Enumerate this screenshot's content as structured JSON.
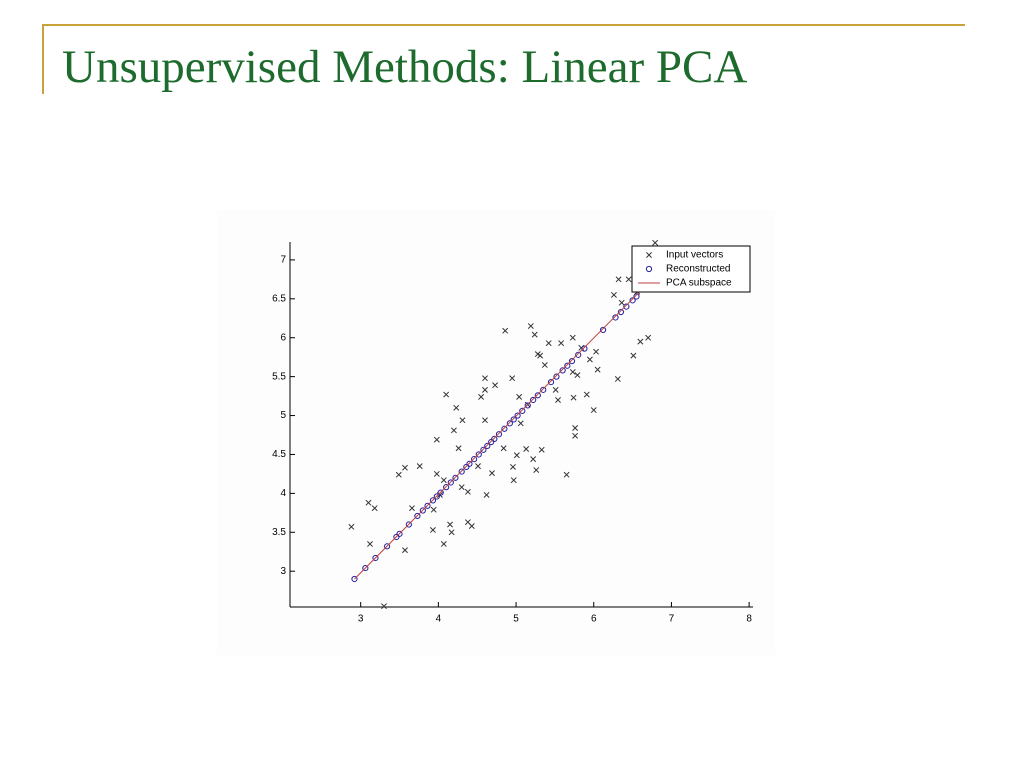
{
  "slide": {
    "title": "Unsupervised Methods: Linear PCA"
  },
  "chart_data": {
    "type": "scatter",
    "xlim": [
      2.09,
      8.05
    ],
    "ylim": [
      2.54,
      7.23
    ],
    "xticks": [
      3,
      4,
      5,
      6,
      7,
      8
    ],
    "yticks": [
      3,
      3.5,
      4,
      4.5,
      5,
      5.5,
      6,
      6.5,
      7
    ],
    "legend": "upper right",
    "series": [
      {
        "name": "Input vectors",
        "marker": "x",
        "color": "#333333",
        "x": [
          2.88,
          3.1,
          3.18,
          3.12,
          3.3,
          3.57,
          3.49,
          3.57,
          3.66,
          3.76,
          3.93,
          3.94,
          3.98,
          3.98,
          4.02,
          4.07,
          4.07,
          4.1,
          4.15,
          4.17,
          4.2,
          4.23,
          4.26,
          4.3,
          4.31,
          4.38,
          4.38,
          4.43,
          4.51,
          4.55,
          4.6,
          4.6,
          4.62,
          4.69,
          4.73,
          4.6,
          4.86,
          4.84,
          4.95,
          4.97,
          4.96,
          5.01,
          5.04,
          5.06,
          5.13,
          5.15,
          5.19,
          5.22,
          5.24,
          5.26,
          5.28,
          5.31,
          5.33,
          5.37,
          5.42,
          5.51,
          5.54,
          5.58,
          5.65,
          5.73,
          5.73,
          5.74,
          5.76,
          5.76,
          5.79,
          5.84,
          5.91,
          5.95,
          6.03,
          6.0,
          6.05,
          6.26,
          6.31,
          6.32,
          6.36,
          6.45,
          6.51,
          6.6,
          6.7,
          6.79,
          6.56
        ],
        "values": [
          3.57,
          3.88,
          3.81,
          3.35,
          2.55,
          3.27,
          4.24,
          4.33,
          3.81,
          4.35,
          3.53,
          3.79,
          4.69,
          4.25,
          3.98,
          4.17,
          3.35,
          5.27,
          3.6,
          3.5,
          4.81,
          5.1,
          4.58,
          4.08,
          4.94,
          4.02,
          3.63,
          3.58,
          4.35,
          5.24,
          5.48,
          5.33,
          3.98,
          4.26,
          5.39,
          4.94,
          6.09,
          4.58,
          5.48,
          4.17,
          4.34,
          4.49,
          5.24,
          4.9,
          4.57,
          5.14,
          6.15,
          4.44,
          6.04,
          4.3,
          5.79,
          5.77,
          4.56,
          5.65,
          5.93,
          5.33,
          5.2,
          5.93,
          4.24,
          6.0,
          5.56,
          5.23,
          4.84,
          4.74,
          5.52,
          5.87,
          5.27,
          5.72,
          5.82,
          5.07,
          5.59,
          6.55,
          5.47,
          6.75,
          6.45,
          6.75,
          5.77,
          5.95,
          6.0,
          7.22,
          6.59
        ]
      },
      {
        "name": "Reconstructed",
        "marker": "o",
        "color": "#2020a0",
        "x": [
          2.92,
          3.06,
          3.19,
          3.34,
          3.46,
          3.5,
          3.62,
          3.73,
          3.8,
          3.86,
          3.93,
          3.98,
          4.03,
          4.1,
          4.16,
          4.22,
          4.3,
          4.36,
          4.4,
          4.46,
          4.52,
          4.58,
          4.63,
          4.68,
          4.72,
          4.78,
          4.85,
          4.92,
          4.97,
          5.02,
          5.08,
          5.15,
          5.22,
          5.28,
          5.35,
          5.45,
          5.52,
          5.6,
          5.66,
          5.72,
          5.8,
          5.88,
          6.12,
          6.28,
          6.35,
          6.42,
          6.5,
          6.55
        ],
        "values": [
          2.9,
          3.04,
          3.17,
          3.32,
          3.44,
          3.48,
          3.6,
          3.71,
          3.78,
          3.84,
          3.91,
          3.96,
          4.01,
          4.08,
          4.14,
          4.2,
          4.28,
          4.34,
          4.38,
          4.44,
          4.5,
          4.56,
          4.61,
          4.66,
          4.7,
          4.76,
          4.83,
          4.9,
          4.95,
          5.0,
          5.06,
          5.13,
          5.2,
          5.26,
          5.33,
          5.43,
          5.5,
          5.58,
          5.64,
          5.7,
          5.78,
          5.86,
          6.1,
          6.26,
          6.33,
          6.4,
          6.48,
          6.53
        ]
      },
      {
        "name": "PCA subspace",
        "marker": "line",
        "color": "#c04040",
        "x": [
          2.92,
          6.62
        ],
        "values": [
          2.9,
          6.62
        ]
      }
    ]
  }
}
